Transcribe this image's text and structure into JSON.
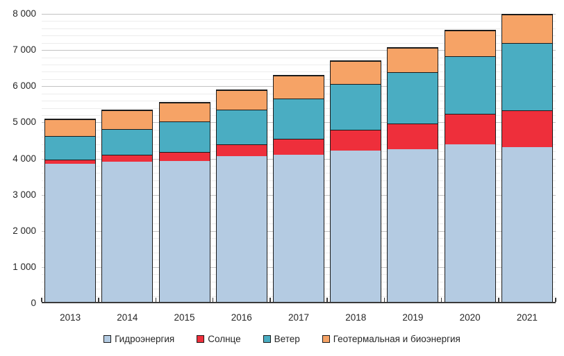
{
  "chart_data": {
    "type": "bar",
    "stacked": true,
    "title": "",
    "xlabel": "",
    "ylabel": "",
    "categories": [
      "2013",
      "2014",
      "2015",
      "2016",
      "2017",
      "2018",
      "2019",
      "2020",
      "2021"
    ],
    "series": [
      {
        "key": "hydro",
        "name": "Гидроэнергия",
        "color": "#b4cbe2",
        "values": [
          3810,
          3870,
          3890,
          4020,
          4060,
          4190,
          4220,
          4350,
          4270
        ]
      },
      {
        "key": "solar",
        "name": "Солнце",
        "color": "#ee2f3b",
        "values": [
          130,
          200,
          260,
          330,
          440,
          560,
          710,
          850,
          1030
        ]
      },
      {
        "key": "wind",
        "name": "Ветер",
        "color": "#4aadc2",
        "values": [
          640,
          710,
          830,
          960,
          1130,
          1270,
          1430,
          1600,
          1860
        ]
      },
      {
        "key": "geo_bio",
        "name": "Геотермальная и биоэнергия",
        "color": "#f6a366",
        "values": [
          470,
          510,
          530,
          550,
          620,
          640,
          670,
          710,
          780
        ]
      }
    ],
    "totals": [
      5050,
      5290,
      5510,
      5860,
      6250,
      6660,
      7030,
      7510,
      7940
    ],
    "ylim": [
      0,
      8000
    ],
    "y_major_step": 1000,
    "y_minor_step": 200,
    "y_tick_labels": [
      "0",
      "1 000",
      "2 000",
      "3 000",
      "4 000",
      "5 000",
      "6 000",
      "7 000",
      "8 000"
    ],
    "grid": "horizontal major+minor",
    "legend_position": "bottom"
  },
  "colors": {
    "background": "#ffffff",
    "major_grid": "#c2c2c2",
    "minor_grid": "#ececec",
    "bar_border": "#1a1a1a",
    "axis_line": "#3a3a3a",
    "text": "#262626"
  }
}
